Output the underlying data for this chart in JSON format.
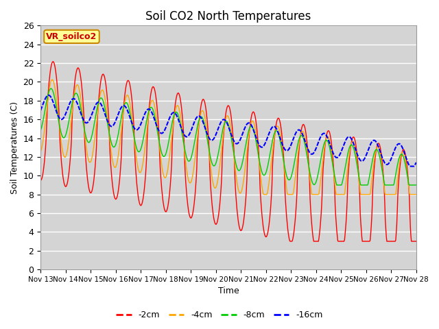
{
  "title": "Soil CO2 North Temperatures",
  "xlabel": "Time",
  "ylabel": "Soil Temperatures (C)",
  "ylim": [
    0,
    26
  ],
  "plot_bg_color": "#d4d4d4",
  "series_colors": [
    "#ff0000",
    "#ffa500",
    "#00cc00",
    "#0000ff"
  ],
  "series_labels": [
    "-2cm",
    "-4cm",
    "-8cm",
    "-16cm"
  ],
  "legend_label": "VR_soilco2",
  "legend_bg": "#ffff99",
  "legend_border": "#cc8800",
  "xtick_labels": [
    "Nov 13",
    "Nov 14",
    "Nov 15",
    "Nov 16",
    "Nov 17",
    "Nov 18",
    "Nov 19",
    "Nov 20",
    "Nov 21",
    "Nov 22",
    "Nov 23",
    "Nov 24",
    "Nov 25",
    "Nov 26",
    "Nov 27",
    "Nov 28"
  ],
  "ytick_values": [
    0,
    2,
    4,
    6,
    8,
    10,
    12,
    14,
    16,
    18,
    20,
    22,
    24,
    26
  ]
}
